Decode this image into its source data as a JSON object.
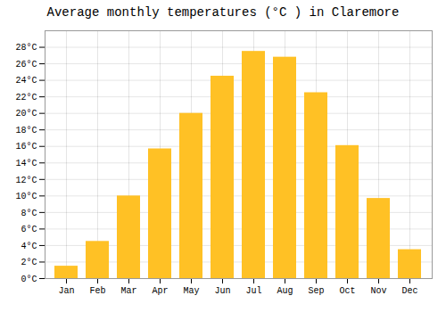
{
  "chart_data": {
    "type": "bar",
    "title": "Average monthly temperatures (°C ) in Claremore",
    "categories": [
      "Jan",
      "Feb",
      "Mar",
      "Apr",
      "May",
      "Jun",
      "Jul",
      "Aug",
      "Sep",
      "Oct",
      "Nov",
      "Dec"
    ],
    "values": [
      1.5,
      4.5,
      10.0,
      15.7,
      20.0,
      24.5,
      27.5,
      26.8,
      22.5,
      16.1,
      9.7,
      3.5
    ],
    "color": "#FFC125",
    "ylim": [
      0,
      30
    ],
    "yticks": [
      {
        "value": 0,
        "label": "0°C"
      },
      {
        "value": 2,
        "label": "2°C"
      },
      {
        "value": 4,
        "label": "4°C"
      },
      {
        "value": 6,
        "label": "6°C"
      },
      {
        "value": 8,
        "label": "8°C"
      },
      {
        "value": 10,
        "label": "10°C"
      },
      {
        "value": 12,
        "label": "12°C"
      },
      {
        "value": 14,
        "label": "14°C"
      },
      {
        "value": 16,
        "label": "16°C"
      },
      {
        "value": 18,
        "label": "18°C"
      },
      {
        "value": 20,
        "label": "20°C"
      },
      {
        "value": 22,
        "label": "22°C"
      },
      {
        "value": 24,
        "label": "24°C"
      },
      {
        "value": 26,
        "label": "26°C"
      },
      {
        "value": 28,
        "label": "28°C"
      }
    ],
    "grid": true
  }
}
